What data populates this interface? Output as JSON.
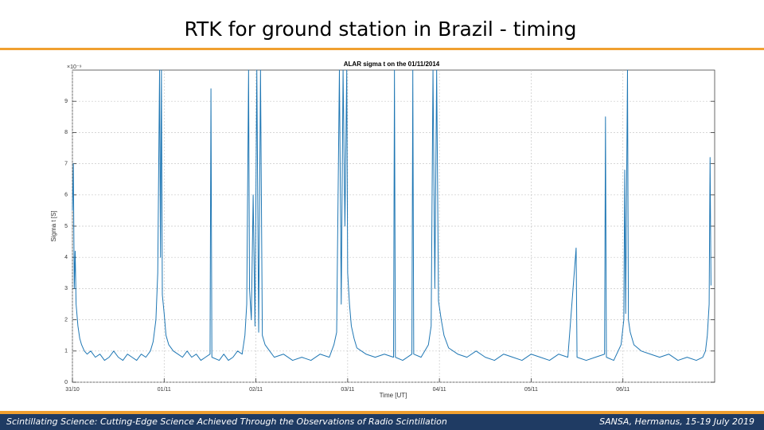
{
  "slide": {
    "title": "RTK for ground station in Brazil - timing",
    "footer_left": "Scintillating Science: Cutting-Edge Science Achieved Through the Observations of Radio Scintillation",
    "footer_right": "SANSA, Hermanus, 15-19 July 2019"
  },
  "chart_data": {
    "type": "line",
    "title": "ALAR sigma t on the 01/11/2014",
    "x_label": "Time [UT]",
    "y_label": "Sigma t [S]",
    "y_exponent": "×10⁻⁹",
    "color": "#1f77b4",
    "grid": true,
    "xlim": [
      0,
      7
    ],
    "ylim": [
      0,
      10
    ],
    "xticks": [
      {
        "value": 0,
        "label": "31/10"
      },
      {
        "value": 1,
        "label": "01/11"
      },
      {
        "value": 2,
        "label": "02/11"
      },
      {
        "value": 3,
        "label": "03/11"
      },
      {
        "value": 4,
        "label": "04/11"
      },
      {
        "value": 5,
        "label": "05/11"
      },
      {
        "value": 6,
        "label": "06/11"
      }
    ],
    "yticks": [
      0,
      1,
      2,
      3,
      4,
      5,
      6,
      7,
      8,
      9
    ],
    "x": [
      0.0,
      0.01,
      0.02,
      0.03,
      0.04,
      0.06,
      0.08,
      0.1,
      0.13,
      0.16,
      0.2,
      0.25,
      0.3,
      0.35,
      0.4,
      0.45,
      0.5,
      0.55,
      0.6,
      0.65,
      0.7,
      0.75,
      0.8,
      0.85,
      0.88,
      0.91,
      0.93,
      0.95,
      0.96,
      0.97,
      0.98,
      1.0,
      1.02,
      1.05,
      1.1,
      1.15,
      1.2,
      1.25,
      1.3,
      1.35,
      1.4,
      1.45,
      1.5,
      1.51,
      1.52,
      1.6,
      1.65,
      1.7,
      1.75,
      1.8,
      1.85,
      1.88,
      1.9,
      1.92,
      1.93,
      1.95,
      1.97,
      1.99,
      2.01,
      2.03,
      2.05,
      2.07,
      2.1,
      2.15,
      2.2,
      2.3,
      2.4,
      2.5,
      2.6,
      2.7,
      2.8,
      2.85,
      2.88,
      2.91,
      2.93,
      2.95,
      2.97,
      2.99,
      3.0,
      3.02,
      3.04,
      3.07,
      3.1,
      3.15,
      3.2,
      3.3,
      3.4,
      3.5,
      3.51,
      3.52,
      3.6,
      3.7,
      3.71,
      3.72,
      3.8,
      3.88,
      3.91,
      3.93,
      3.95,
      3.97,
      3.99,
      4.02,
      4.05,
      4.1,
      4.2,
      4.3,
      4.4,
      4.5,
      4.6,
      4.7,
      4.8,
      4.9,
      5.0,
      5.1,
      5.2,
      5.3,
      5.4,
      5.49,
      5.5,
      5.6,
      5.7,
      5.8,
      5.81,
      5.82,
      5.9,
      5.98,
      6.01,
      6.02,
      6.03,
      6.05,
      6.06,
      6.08,
      6.12,
      6.2,
      6.3,
      6.4,
      6.5,
      6.6,
      6.7,
      6.8,
      6.87,
      6.9,
      6.92,
      6.94,
      6.95,
      6.96
    ],
    "values": [
      5.5,
      7.0,
      3.0,
      4.2,
      2.5,
      1.8,
      1.4,
      1.2,
      1.0,
      0.9,
      1.0,
      0.8,
      0.9,
      0.7,
      0.8,
      1.0,
      0.8,
      0.7,
      0.9,
      0.8,
      0.7,
      0.9,
      0.8,
      1.0,
      1.3,
      2.0,
      3.5,
      10,
      4.0,
      10,
      2.8,
      2.2,
      1.5,
      1.2,
      1.0,
      0.9,
      0.8,
      1.0,
      0.8,
      0.9,
      0.7,
      0.8,
      0.9,
      9.4,
      0.8,
      0.7,
      0.9,
      0.7,
      0.8,
      1.0,
      0.9,
      1.5,
      2.5,
      10,
      3.0,
      2.0,
      6.0,
      1.8,
      10,
      1.6,
      10,
      1.5,
      1.2,
      1.0,
      0.8,
      0.9,
      0.7,
      0.8,
      0.7,
      0.9,
      0.8,
      1.2,
      1.6,
      10,
      2.5,
      10,
      5.0,
      10,
      3.5,
      2.5,
      1.8,
      1.4,
      1.1,
      1.0,
      0.9,
      0.8,
      0.9,
      0.8,
      10,
      0.8,
      0.7,
      0.9,
      10,
      0.9,
      0.8,
      1.2,
      1.8,
      10,
      3.0,
      10,
      2.6,
      2.0,
      1.5,
      1.1,
      0.9,
      0.8,
      1.0,
      0.8,
      0.7,
      0.9,
      0.8,
      0.7,
      0.9,
      0.8,
      0.7,
      0.9,
      0.8,
      4.3,
      0.8,
      0.7,
      0.8,
      0.9,
      8.5,
      0.8,
      0.7,
      1.2,
      2.0,
      6.8,
      2.2,
      10,
      2.0,
      1.6,
      1.2,
      1.0,
      0.9,
      0.8,
      0.9,
      0.7,
      0.8,
      0.7,
      0.8,
      1.0,
      1.5,
      2.5,
      7.2,
      3.1
    ]
  }
}
